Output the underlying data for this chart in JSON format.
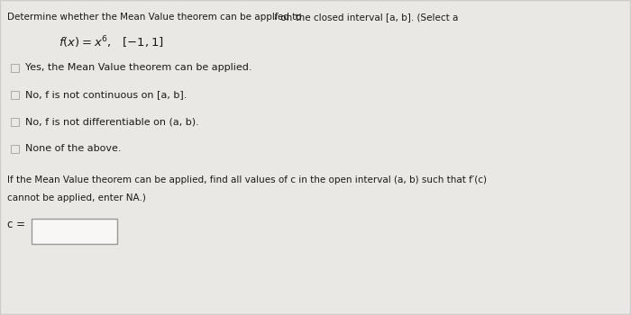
{
  "bg_color": "#eae8e4",
  "content_bg": "#f0eeea",
  "text_color": "#1a1a1a",
  "title_line": "Determine whether the Mean Value theorem can be applied to f on the closed interval [a, b]. (Select a",
  "options": [
    "Yes, the Mean Value theorem can be applied.",
    "No, f is not continuous on [a, b].",
    "No, f is not differentiable on (a, b).",
    "None of the above."
  ],
  "bottom_text_line1": "If the Mean Value theorem can be applied, find all values of c in the open interval (a, b) such that f′(c)",
  "bottom_text_line2": "cannot be applied, enter NA.)",
  "c_label": "c =",
  "checkbox_color": "#aaaaaa",
  "box_edge_color": "#999999",
  "input_bg": "#f8f7f5"
}
